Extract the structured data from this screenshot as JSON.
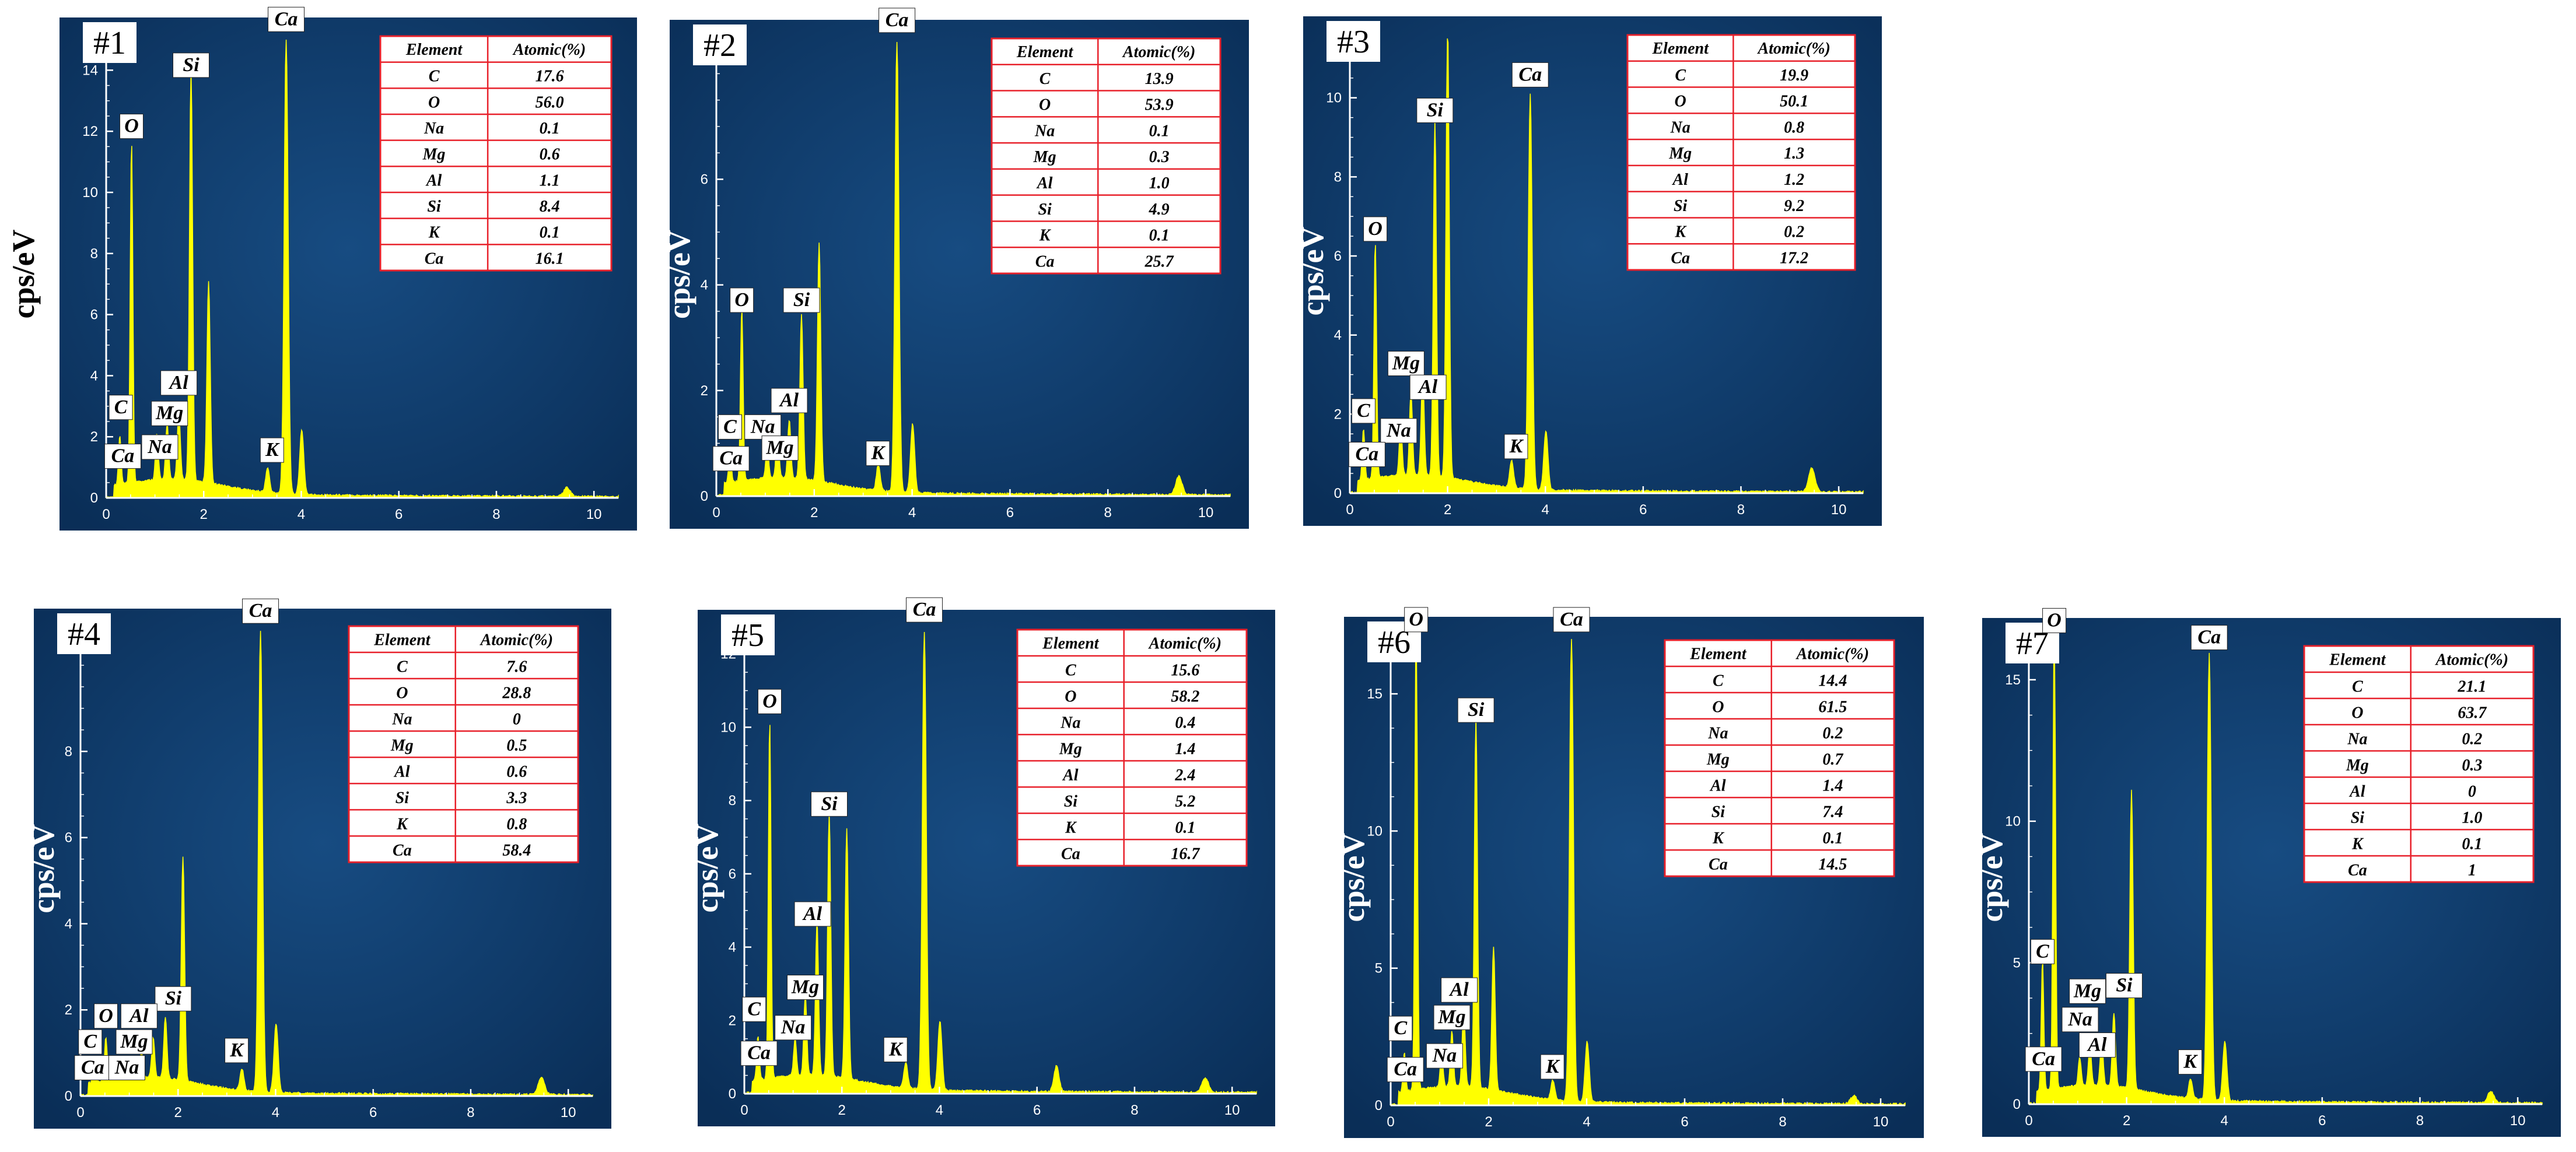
{
  "ylabel": "cps/eV",
  "table_headers": [
    "Element",
    "Atomic(%)"
  ],
  "colors": {
    "panel_bg": "#0d3a6b",
    "spectrum": "#ffff00",
    "axis": "#ffffff",
    "table_border": "#e8202a",
    "table_bg": "#ffffff",
    "background": "#ffffff"
  },
  "chart_data": [
    {
      "type": "area",
      "panel_label": "#1",
      "xlim": [
        0,
        10.5
      ],
      "ylim": [
        0,
        15
      ],
      "xticks": [
        "0",
        "2",
        "4",
        "6",
        "8",
        "10"
      ],
      "yticks": [
        "0",
        "2",
        "4",
        "6",
        "8",
        "10",
        "12",
        "14"
      ],
      "ylabel": "cps/eV",
      "peaks": [
        {
          "x": 0.28,
          "y": 1.6
        },
        {
          "x": 0.52,
          "y": 11.2
        },
        {
          "x": 1.04,
          "y": 1.5
        },
        {
          "x": 1.25,
          "y": 1.8
        },
        {
          "x": 1.49,
          "y": 2.2
        },
        {
          "x": 1.74,
          "y": 13.5
        },
        {
          "x": 2.1,
          "y": 6.6
        },
        {
          "x": 3.31,
          "y": 0.8
        },
        {
          "x": 3.69,
          "y": 15.0
        },
        {
          "x": 4.01,
          "y": 2.1
        },
        {
          "x": 9.45,
          "y": 0.3
        }
      ],
      "peak_labels": [
        {
          "text": "Ca",
          "x": 3.69,
          "y": 15.3
        },
        {
          "text": "Si",
          "x": 1.74,
          "y": 13.8
        },
        {
          "text": "O",
          "x": 0.52,
          "y": 11.8
        },
        {
          "text": "C",
          "x": 0.3,
          "y": 2.6
        },
        {
          "text": "Al",
          "x": 1.49,
          "y": 3.4
        },
        {
          "text": "Mg",
          "x": 1.3,
          "y": 2.4
        },
        {
          "text": "Na",
          "x": 1.1,
          "y": 1.3
        },
        {
          "text": "Ca",
          "x": 0.34,
          "y": 1.0
        },
        {
          "text": "K",
          "x": 3.4,
          "y": 1.2
        }
      ],
      "table": [
        [
          "C",
          "17.6"
        ],
        [
          "O",
          "56.0"
        ],
        [
          "Na",
          "0.1"
        ],
        [
          "Mg",
          "0.6"
        ],
        [
          "Al",
          "1.1"
        ],
        [
          "Si",
          "8.4"
        ],
        [
          "K",
          "0.1"
        ],
        [
          "Ca",
          "16.1"
        ]
      ]
    },
    {
      "type": "area",
      "panel_label": "#2",
      "xlim": [
        0,
        10.5
      ],
      "ylim": [
        0,
        8.6
      ],
      "xticks": [
        "0",
        "2",
        "4",
        "6",
        "8",
        "10"
      ],
      "yticks": [
        "0",
        "2",
        "4",
        "6"
      ],
      "ylabel": "cps/eV",
      "peaks": [
        {
          "x": 0.28,
          "y": 0.7
        },
        {
          "x": 0.52,
          "y": 3.3
        },
        {
          "x": 1.04,
          "y": 0.6
        },
        {
          "x": 1.25,
          "y": 0.9
        },
        {
          "x": 1.49,
          "y": 1.1
        },
        {
          "x": 1.74,
          "y": 3.1
        },
        {
          "x": 2.1,
          "y": 4.5
        },
        {
          "x": 3.31,
          "y": 0.5
        },
        {
          "x": 3.69,
          "y": 8.6
        },
        {
          "x": 4.01,
          "y": 1.3
        },
        {
          "x": 9.45,
          "y": 0.35
        }
      ],
      "peak_labels": [
        {
          "text": "Ca",
          "x": 3.69,
          "y": 8.8
        },
        {
          "text": "O",
          "x": 0.52,
          "y": 3.5
        },
        {
          "text": "Si",
          "x": 1.74,
          "y": 3.5
        },
        {
          "text": "Al",
          "x": 1.49,
          "y": 1.6
        },
        {
          "text": "C",
          "x": 0.28,
          "y": 1.1
        },
        {
          "text": "Na",
          "x": 0.95,
          "y": 1.1
        },
        {
          "text": "Mg",
          "x": 1.3,
          "y": 0.7
        },
        {
          "text": "Ca",
          "x": 0.3,
          "y": 0.5
        },
        {
          "text": "K",
          "x": 3.3,
          "y": 0.6
        }
      ],
      "table": [
        [
          "C",
          "13.9"
        ],
        [
          "O",
          "53.9"
        ],
        [
          "Na",
          "0.1"
        ],
        [
          "Mg",
          "0.3"
        ],
        [
          "Al",
          "1.0"
        ],
        [
          "Si",
          "4.9"
        ],
        [
          "K",
          "0.1"
        ],
        [
          "Ca",
          "25.7"
        ]
      ]
    },
    {
      "type": "area",
      "panel_label": "#3",
      "xlim": [
        0,
        10.5
      ],
      "ylim": [
        0,
        11.5
      ],
      "xticks": [
        "0",
        "2",
        "4",
        "6",
        "8",
        "10"
      ],
      "yticks": [
        "0",
        "2",
        "4",
        "6",
        "8",
        "10"
      ],
      "ylabel": "cps/eV",
      "peaks": [
        {
          "x": 0.28,
          "y": 1.3
        },
        {
          "x": 0.52,
          "y": 6.0
        },
        {
          "x": 1.04,
          "y": 1.3
        },
        {
          "x": 1.25,
          "y": 2.1
        },
        {
          "x": 1.49,
          "y": 2.6
        },
        {
          "x": 1.74,
          "y": 9.0
        },
        {
          "x": 2.0,
          "y": 11.5
        },
        {
          "x": 3.31,
          "y": 0.7
        },
        {
          "x": 3.69,
          "y": 10.0
        },
        {
          "x": 4.01,
          "y": 1.5
        },
        {
          "x": 9.45,
          "y": 0.6
        }
      ],
      "peak_labels": [
        {
          "text": "Ca",
          "x": 3.69,
          "y": 10.3
        },
        {
          "text": "Si",
          "x": 1.74,
          "y": 9.4
        },
        {
          "text": "O",
          "x": 0.52,
          "y": 6.4
        },
        {
          "text": "Mg",
          "x": 1.15,
          "y": 3.0
        },
        {
          "text": "Al",
          "x": 1.6,
          "y": 2.4
        },
        {
          "text": "C",
          "x": 0.28,
          "y": 1.8
        },
        {
          "text": "Na",
          "x": 1.0,
          "y": 1.3
        },
        {
          "text": "Ca",
          "x": 0.35,
          "y": 0.7
        },
        {
          "text": "K",
          "x": 3.4,
          "y": 0.9
        }
      ],
      "table": [
        [
          "C",
          "19.9"
        ],
        [
          "O",
          "50.1"
        ],
        [
          "Na",
          "0.8"
        ],
        [
          "Mg",
          "1.3"
        ],
        [
          "Al",
          "1.2"
        ],
        [
          "Si",
          "9.2"
        ],
        [
          "K",
          "0.2"
        ],
        [
          "Ca",
          "17.2"
        ]
      ]
    },
    {
      "type": "area",
      "panel_label": "#4",
      "xlim": [
        0,
        10.5
      ],
      "ylim": [
        0,
        10.8
      ],
      "xticks": [
        "0",
        "2",
        "4",
        "6",
        "8",
        "10"
      ],
      "yticks": [
        "0",
        "2",
        "4",
        "6",
        "8"
      ],
      "ylabel": "cps/eV",
      "peaks": [
        {
          "x": 0.28,
          "y": 0.5
        },
        {
          "x": 0.52,
          "y": 1.0
        },
        {
          "x": 1.04,
          "y": 0.4
        },
        {
          "x": 1.25,
          "y": 0.6
        },
        {
          "x": 1.49,
          "y": 0.9
        },
        {
          "x": 1.74,
          "y": 1.4
        },
        {
          "x": 2.1,
          "y": 5.2
        },
        {
          "x": 3.31,
          "y": 0.5
        },
        {
          "x": 3.69,
          "y": 10.8
        },
        {
          "x": 4.01,
          "y": 1.6
        },
        {
          "x": 9.45,
          "y": 0.4
        }
      ],
      "peak_labels": [
        {
          "text": "Ca",
          "x": 3.69,
          "y": 11.0
        },
        {
          "text": "Si",
          "x": 1.9,
          "y": 2.0
        },
        {
          "text": "O",
          "x": 0.52,
          "y": 1.6
        },
        {
          "text": "Al",
          "x": 1.2,
          "y": 1.6
        },
        {
          "text": "C",
          "x": 0.2,
          "y": 1.0
        },
        {
          "text": "Mg",
          "x": 1.1,
          "y": 1.0
        },
        {
          "text": "Ca",
          "x": 0.25,
          "y": 0.4
        },
        {
          "text": "Na",
          "x": 0.95,
          "y": 0.4
        },
        {
          "text": "K",
          "x": 3.2,
          "y": 0.8
        }
      ],
      "table": [
        [
          "C",
          "7.6"
        ],
        [
          "O",
          "28.8"
        ],
        [
          "Na",
          "0"
        ],
        [
          "Mg",
          "0.5"
        ],
        [
          "Al",
          "0.6"
        ],
        [
          "Si",
          "3.3"
        ],
        [
          "K",
          "0.8"
        ],
        [
          "Ca",
          "58.4"
        ]
      ]
    },
    {
      "type": "area",
      "panel_label": "#5",
      "xlim": [
        0,
        10.5
      ],
      "ylim": [
        0,
        12.6
      ],
      "xticks": [
        "0",
        "2",
        "4",
        "6",
        "8",
        "10"
      ],
      "yticks": [
        "0",
        "2",
        "4",
        "6",
        "8",
        "10",
        "12"
      ],
      "ylabel": "cps/eV",
      "peaks": [
        {
          "x": 0.28,
          "y": 1.2
        },
        {
          "x": 0.52,
          "y": 9.8
        },
        {
          "x": 1.04,
          "y": 1.0
        },
        {
          "x": 1.25,
          "y": 2.2
        },
        {
          "x": 1.49,
          "y": 4.2
        },
        {
          "x": 1.74,
          "y": 7.2
        },
        {
          "x": 2.1,
          "y": 6.8
        },
        {
          "x": 3.31,
          "y": 0.7
        },
        {
          "x": 3.69,
          "y": 12.6
        },
        {
          "x": 4.01,
          "y": 1.9
        },
        {
          "x": 6.4,
          "y": 0.7
        },
        {
          "x": 9.45,
          "y": 0.4
        }
      ],
      "peak_labels": [
        {
          "text": "Ca",
          "x": 3.69,
          "y": 12.9
        },
        {
          "text": "O",
          "x": 0.52,
          "y": 10.4
        },
        {
          "text": "Si",
          "x": 1.74,
          "y": 7.6
        },
        {
          "text": "Al",
          "x": 1.4,
          "y": 4.6
        },
        {
          "text": "Mg",
          "x": 1.25,
          "y": 2.6
        },
        {
          "text": "C",
          "x": 0.2,
          "y": 2.0
        },
        {
          "text": "Na",
          "x": 1.0,
          "y": 1.5
        },
        {
          "text": "Ca",
          "x": 0.3,
          "y": 0.8
        },
        {
          "text": "K",
          "x": 3.1,
          "y": 0.9
        }
      ],
      "table": [
        [
          "C",
          "15.6"
        ],
        [
          "O",
          "58.2"
        ],
        [
          "Na",
          "0.4"
        ],
        [
          "Mg",
          "1.4"
        ],
        [
          "Al",
          "2.4"
        ],
        [
          "Si",
          "5.2"
        ],
        [
          "K",
          "0.1"
        ],
        [
          "Ca",
          "16.7"
        ]
      ]
    },
    {
      "type": "area",
      "panel_label": "#6",
      "xlim": [
        0,
        10.5
      ],
      "ylim": [
        0,
        17.0
      ],
      "xticks": [
        "0",
        "2",
        "4",
        "6",
        "8",
        "10"
      ],
      "yticks": [
        "0",
        "5",
        "10",
        "15"
      ],
      "ylabel": "cps/eV",
      "peaks": [
        {
          "x": 0.28,
          "y": 1.4
        },
        {
          "x": 0.52,
          "y": 17.0
        },
        {
          "x": 1.04,
          "y": 1.2
        },
        {
          "x": 1.25,
          "y": 2.0
        },
        {
          "x": 1.49,
          "y": 2.8
        },
        {
          "x": 1.74,
          "y": 13.5
        },
        {
          "x": 2.1,
          "y": 5.2
        },
        {
          "x": 3.31,
          "y": 0.7
        },
        {
          "x": 3.69,
          "y": 17.0
        },
        {
          "x": 4.01,
          "y": 2.2
        },
        {
          "x": 9.45,
          "y": 0.3
        }
      ],
      "peak_labels": [
        {
          "text": "O",
          "x": 0.52,
          "y": 17.3
        },
        {
          "text": "Ca",
          "x": 3.69,
          "y": 17.3
        },
        {
          "text": "Si",
          "x": 1.74,
          "y": 14.0
        },
        {
          "text": "Al",
          "x": 1.4,
          "y": 3.8
        },
        {
          "text": "Mg",
          "x": 1.25,
          "y": 2.8
        },
        {
          "text": "C",
          "x": 0.2,
          "y": 2.4
        },
        {
          "text": "Na",
          "x": 1.1,
          "y": 1.4
        },
        {
          "text": "Ca",
          "x": 0.3,
          "y": 0.9
        },
        {
          "text": "K",
          "x": 3.3,
          "y": 1.0
        }
      ],
      "table": [
        [
          "C",
          "14.4"
        ],
        [
          "O",
          "61.5"
        ],
        [
          "Na",
          "0.2"
        ],
        [
          "Mg",
          "0.7"
        ],
        [
          "Al",
          "1.4"
        ],
        [
          "Si",
          "7.4"
        ],
        [
          "K",
          "0.1"
        ],
        [
          "Ca",
          "14.5"
        ]
      ]
    },
    {
      "type": "area",
      "panel_label": "#7",
      "xlim": [
        0,
        10.5
      ],
      "ylim": [
        0,
        16.4
      ],
      "xticks": [
        "0",
        "2",
        "4",
        "6",
        "8",
        "10"
      ],
      "yticks": [
        "0",
        "5",
        "10",
        "15"
      ],
      "ylabel": "cps/eV",
      "peaks": [
        {
          "x": 0.28,
          "y": 4.6
        },
        {
          "x": 0.52,
          "y": 16.4
        },
        {
          "x": 1.04,
          "y": 1.0
        },
        {
          "x": 1.25,
          "y": 1.4
        },
        {
          "x": 1.49,
          "y": 1.6
        },
        {
          "x": 1.74,
          "y": 2.6
        },
        {
          "x": 2.1,
          "y": 10.6
        },
        {
          "x": 3.31,
          "y": 0.7
        },
        {
          "x": 3.69,
          "y": 15.8
        },
        {
          "x": 4.01,
          "y": 2.1
        },
        {
          "x": 9.45,
          "y": 0.4
        }
      ],
      "peak_labels": [
        {
          "text": "O",
          "x": 0.52,
          "y": 16.7
        },
        {
          "text": "Ca",
          "x": 3.69,
          "y": 16.1
        },
        {
          "text": "C",
          "x": 0.28,
          "y": 5.0
        },
        {
          "text": "Mg",
          "x": 1.2,
          "y": 3.6
        },
        {
          "text": "Si",
          "x": 1.95,
          "y": 3.8
        },
        {
          "text": "Na",
          "x": 1.05,
          "y": 2.6
        },
        {
          "text": "Al",
          "x": 1.4,
          "y": 1.7
        },
        {
          "text": "Ca",
          "x": 0.3,
          "y": 1.2
        },
        {
          "text": "K",
          "x": 3.3,
          "y": 1.1
        }
      ],
      "table": [
        [
          "C",
          "21.1"
        ],
        [
          "O",
          "63.7"
        ],
        [
          "Na",
          "0.2"
        ],
        [
          "Mg",
          "0.3"
        ],
        [
          "Al",
          "0"
        ],
        [
          "Si",
          "1.0"
        ],
        [
          "K",
          "0.1"
        ],
        [
          "Ca",
          "1"
        ]
      ]
    }
  ]
}
